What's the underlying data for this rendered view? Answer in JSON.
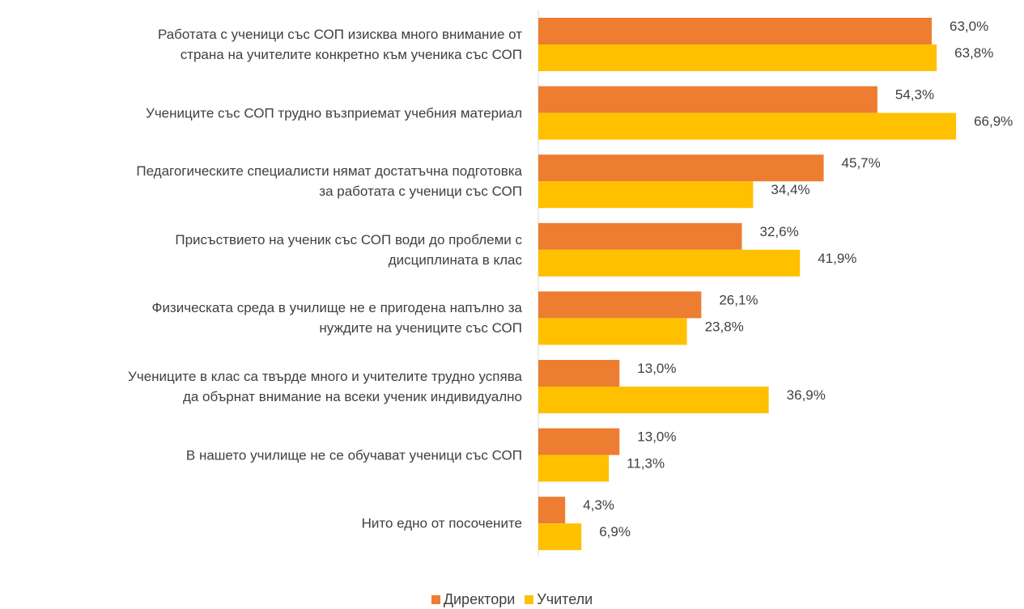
{
  "chart_data": {
    "type": "bar",
    "orientation": "horizontal",
    "categories": [
      "Работата с  ученици със СОП изисква много внимание от\nстрана на учителите конкретно към ученика със СОП",
      "Учениците със СОП трудно възприемат учебния материал",
      "Педагогическите специалисти нямат достатъчна подготовка\nза работата с  ученици със СОП",
      "Присъствието на ученик със  СОП води до проблеми с\nдисциплината в клас",
      "Физическата среда в училище не е пригодена напълно за\nнуждите на учениците  със СОП",
      "Учениците в клас са твърде много и учителите трудно успява\nда обърнат внимание на всеки ученик индивидуално",
      "В нашето училище не се обучават ученици със СОП",
      "Нито едно от посочените"
    ],
    "series": [
      {
        "name": "Директори",
        "color": "#ed7d31",
        "values": [
          63.0,
          54.3,
          45.7,
          32.6,
          26.1,
          13.0,
          13.0,
          4.3
        ],
        "value_labels": [
          "63,0%",
          "54,3%",
          "45,7%",
          "32,6%",
          "26,1%",
          "13,0%",
          "13,0%",
          "4,3%"
        ]
      },
      {
        "name": "Учители",
        "color": "#ffc000",
        "values": [
          63.8,
          66.9,
          34.4,
          41.9,
          23.8,
          36.9,
          11.3,
          6.9
        ],
        "value_labels": [
          "63,8%",
          "66,9%",
          "34,4%",
          "41,9%",
          "23,8%",
          "36,9%",
          "11,3%",
          "6,9%"
        ]
      }
    ],
    "xlim": [
      0,
      70
    ],
    "legend": "bottom"
  }
}
